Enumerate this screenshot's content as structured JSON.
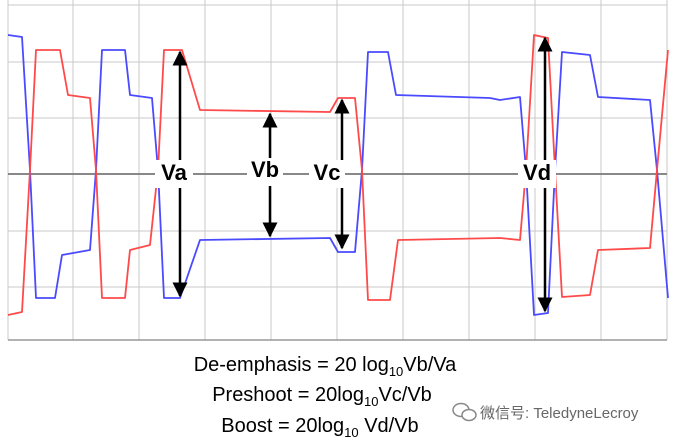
{
  "labels": {
    "va": "Va",
    "vb": "Vb",
    "vc": "Vc",
    "vd": "Vd"
  },
  "formulas": [
    {
      "lhs": "De-emphasis = 20 log",
      "sub": "10",
      "rhs": "Vb/Va"
    },
    {
      "lhs": "Preshoot = 20log",
      "sub": "10",
      "rhs": "Vc/Vb"
    },
    {
      "lhs": "Boost = 20log",
      "sub": "10",
      "rhs": " Vd/Vb"
    }
  ],
  "watermark": "微信号: TeledyneLecroy"
}
